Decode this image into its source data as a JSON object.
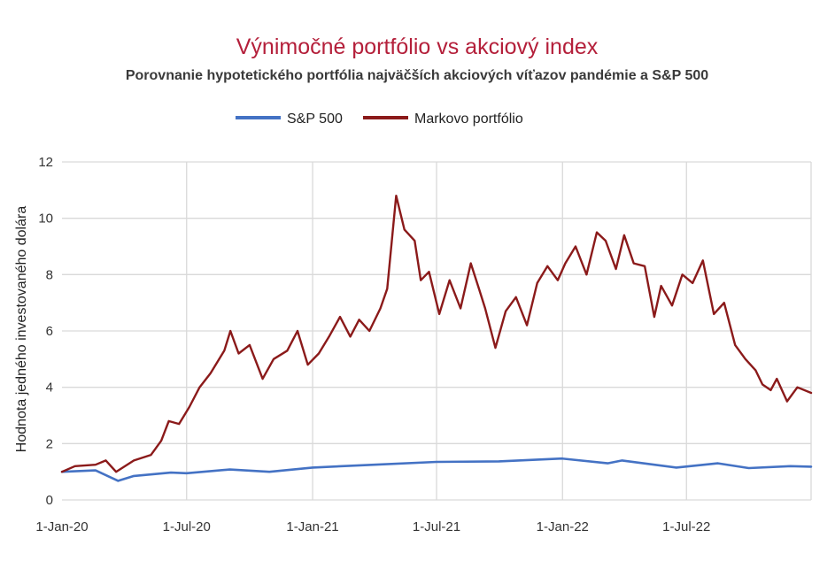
{
  "chart_data": {
    "type": "line",
    "title": "Výnimočné portfólio vs akciový index",
    "subtitle": "Porovnanie hypotetického portfólia najväčších akciových víťazov pandémie a S&P 500",
    "xlabel": "",
    "ylabel": "Hodnota jedného investovaného dolára",
    "x_ticks": [
      "1-Jan-20",
      "1-Jul-20",
      "1-Jan-21",
      "1-Jul-21",
      "1-Jan-22",
      "1-Jul-22"
    ],
    "x_range": [
      "2020-01-01",
      "2022-12-30"
    ],
    "ylim": [
      0,
      12
    ],
    "y_ticks": [
      0,
      2,
      4,
      6,
      8,
      10,
      12
    ],
    "grid": true,
    "legend_position": "top-center",
    "series": [
      {
        "name": "S&P 500",
        "color": "#4472c4",
        "points": [
          [
            "2020-01-01",
            1.0
          ],
          [
            "2020-02-19",
            1.05
          ],
          [
            "2020-03-23",
            0.68
          ],
          [
            "2020-04-15",
            0.85
          ],
          [
            "2020-06-08",
            0.97
          ],
          [
            "2020-07-01",
            0.95
          ],
          [
            "2020-09-02",
            1.08
          ],
          [
            "2020-10-30",
            1.0
          ],
          [
            "2021-01-01",
            1.15
          ],
          [
            "2021-04-01",
            1.25
          ],
          [
            "2021-07-01",
            1.35
          ],
          [
            "2021-09-30",
            1.37
          ],
          [
            "2021-12-31",
            1.47
          ],
          [
            "2022-03-08",
            1.3
          ],
          [
            "2022-03-29",
            1.4
          ],
          [
            "2022-06-16",
            1.15
          ],
          [
            "2022-08-16",
            1.3
          ],
          [
            "2022-09-30",
            1.13
          ],
          [
            "2022-11-30",
            1.2
          ],
          [
            "2022-12-30",
            1.18
          ]
        ]
      },
      {
        "name": "Markovo portfólio",
        "color": "#8b1a1a",
        "points": [
          [
            "2020-01-01",
            1.0
          ],
          [
            "2020-01-20",
            1.2
          ],
          [
            "2020-02-19",
            1.25
          ],
          [
            "2020-03-05",
            1.4
          ],
          [
            "2020-03-20",
            1.0
          ],
          [
            "2020-04-15",
            1.4
          ],
          [
            "2020-05-10",
            1.6
          ],
          [
            "2020-05-25",
            2.1
          ],
          [
            "2020-06-05",
            2.8
          ],
          [
            "2020-06-20",
            2.7
          ],
          [
            "2020-07-05",
            3.3
          ],
          [
            "2020-07-20",
            4.0
          ],
          [
            "2020-08-05",
            4.5
          ],
          [
            "2020-08-25",
            5.3
          ],
          [
            "2020-09-03",
            6.0
          ],
          [
            "2020-09-15",
            5.2
          ],
          [
            "2020-10-01",
            5.5
          ],
          [
            "2020-10-20",
            4.3
          ],
          [
            "2020-11-05",
            5.0
          ],
          [
            "2020-11-25",
            5.3
          ],
          [
            "2020-12-10",
            6.0
          ],
          [
            "2020-12-25",
            4.8
          ],
          [
            "2021-01-10",
            5.2
          ],
          [
            "2021-01-25",
            5.8
          ],
          [
            "2021-02-10",
            6.5
          ],
          [
            "2021-02-25",
            5.8
          ],
          [
            "2021-03-10",
            6.4
          ],
          [
            "2021-03-25",
            6.0
          ],
          [
            "2021-04-10",
            6.8
          ],
          [
            "2021-04-20",
            7.5
          ],
          [
            "2021-05-03",
            10.8
          ],
          [
            "2021-05-15",
            9.6
          ],
          [
            "2021-05-30",
            9.2
          ],
          [
            "2021-06-08",
            7.8
          ],
          [
            "2021-06-20",
            8.1
          ],
          [
            "2021-07-05",
            6.6
          ],
          [
            "2021-07-20",
            7.8
          ],
          [
            "2021-08-05",
            6.8
          ],
          [
            "2021-08-20",
            8.4
          ],
          [
            "2021-09-01",
            7.5
          ],
          [
            "2021-09-10",
            6.8
          ],
          [
            "2021-09-25",
            5.4
          ],
          [
            "2021-10-10",
            6.7
          ],
          [
            "2021-10-25",
            7.2
          ],
          [
            "2021-11-10",
            6.2
          ],
          [
            "2021-11-25",
            7.7
          ],
          [
            "2021-12-10",
            8.3
          ],
          [
            "2021-12-25",
            7.8
          ],
          [
            "2022-01-05",
            8.4
          ],
          [
            "2022-01-20",
            9.0
          ],
          [
            "2022-02-05",
            8.0
          ],
          [
            "2022-02-20",
            9.5
          ],
          [
            "2022-03-05",
            9.2
          ],
          [
            "2022-03-20",
            8.2
          ],
          [
            "2022-04-01",
            9.4
          ],
          [
            "2022-04-15",
            8.4
          ],
          [
            "2022-05-01",
            8.3
          ],
          [
            "2022-05-15",
            6.5
          ],
          [
            "2022-05-25",
            7.6
          ],
          [
            "2022-06-10",
            6.9
          ],
          [
            "2022-06-25",
            8.0
          ],
          [
            "2022-07-10",
            7.7
          ],
          [
            "2022-07-25",
            8.5
          ],
          [
            "2022-08-10",
            6.6
          ],
          [
            "2022-08-25",
            7.0
          ],
          [
            "2022-09-10",
            5.5
          ],
          [
            "2022-09-25",
            5.0
          ],
          [
            "2022-10-10",
            4.6
          ],
          [
            "2022-10-20",
            4.1
          ],
          [
            "2022-11-01",
            3.9
          ],
          [
            "2022-11-10",
            4.3
          ],
          [
            "2022-11-25",
            3.5
          ],
          [
            "2022-12-10",
            4.0
          ],
          [
            "2022-12-30",
            3.8
          ]
        ]
      }
    ]
  }
}
